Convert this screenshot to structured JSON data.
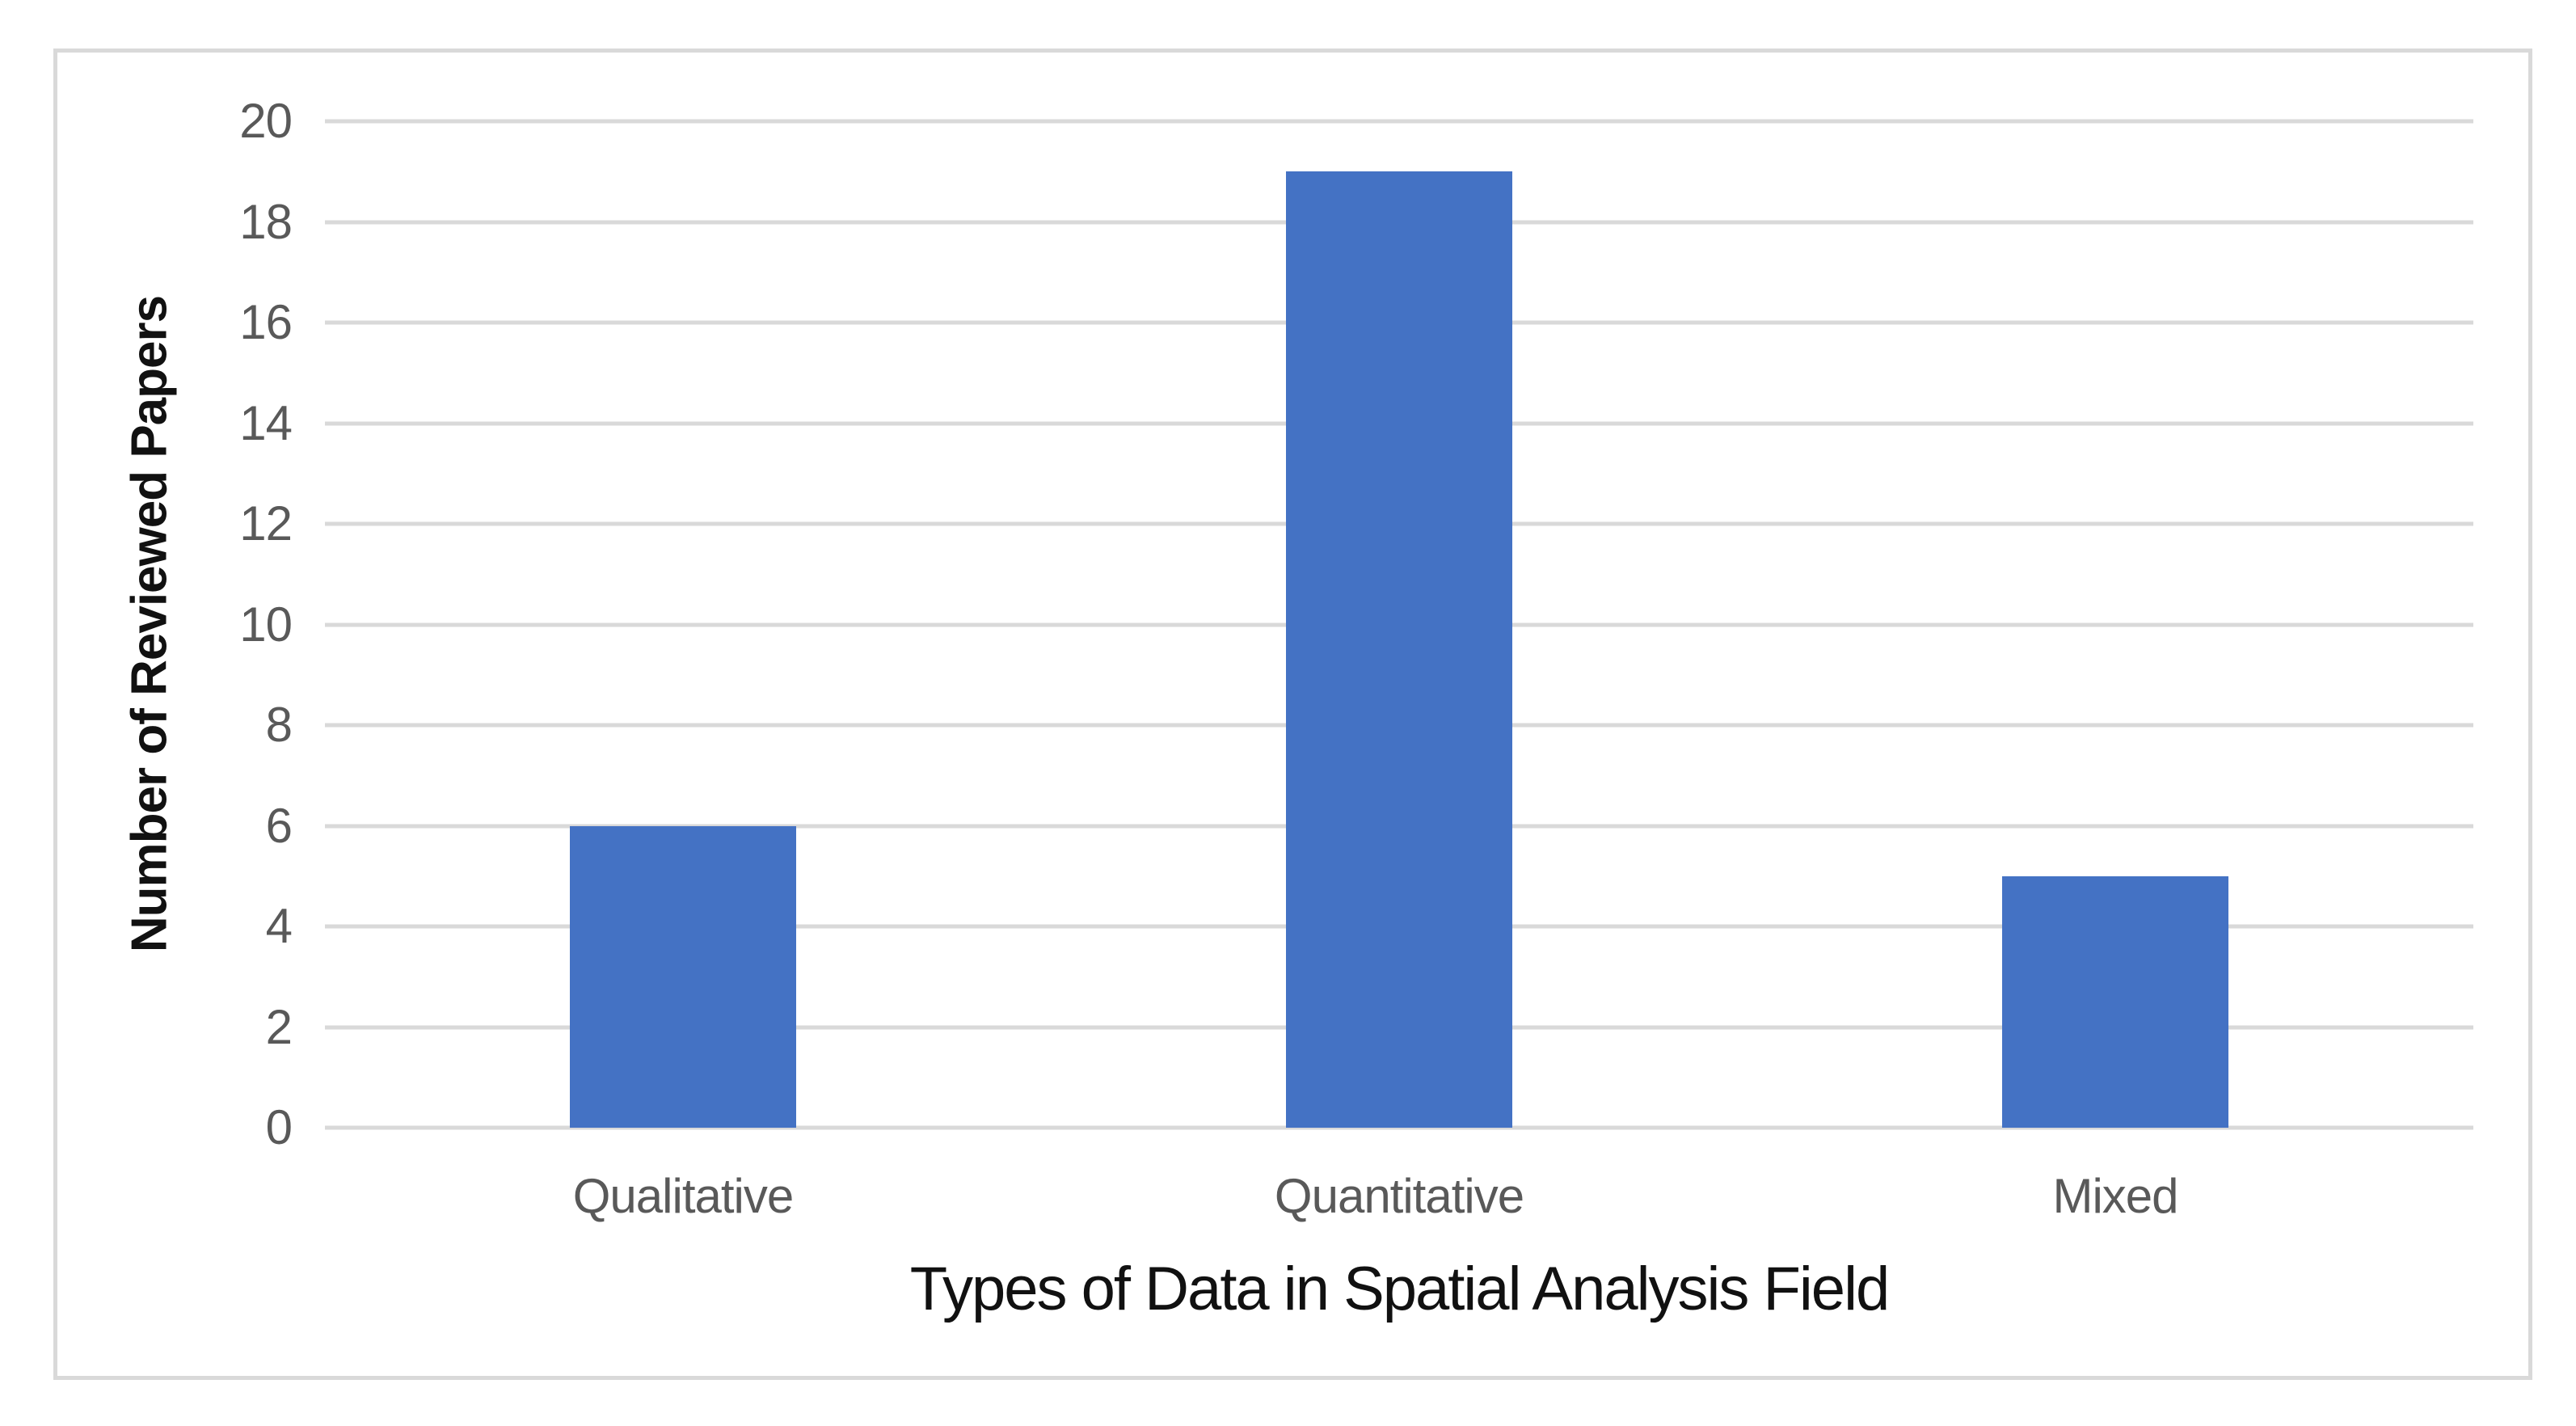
{
  "chart_data": {
    "type": "bar",
    "title": "",
    "categories": [
      "Qualitative",
      "Quantitative",
      "Mixed"
    ],
    "values": [
      6,
      19,
      5
    ],
    "series": [
      {
        "name": "Number of Reviewed Papers",
        "values": [
          6,
          19,
          5
        ]
      }
    ],
    "xlabel": "Types of Data in Spatial Analysis Field",
    "ylabel": "Number of Reviewed Papers",
    "ylim": [
      0,
      20
    ],
    "ytick_step": 2,
    "ytick_labels": [
      "0",
      "2",
      "4",
      "6",
      "8",
      "10",
      "12",
      "14",
      "16",
      "18",
      "20"
    ],
    "grid": "horizontal-on",
    "legend_position": "none",
    "colors": {
      "bar_fill": "#4472C4",
      "gridline": "#D9D9D9",
      "frame_border": "#D9D9D9",
      "tick_label": "#595959",
      "category_label": "#595959",
      "axis_title": "#111111",
      "background": "#FFFFFF"
    }
  }
}
